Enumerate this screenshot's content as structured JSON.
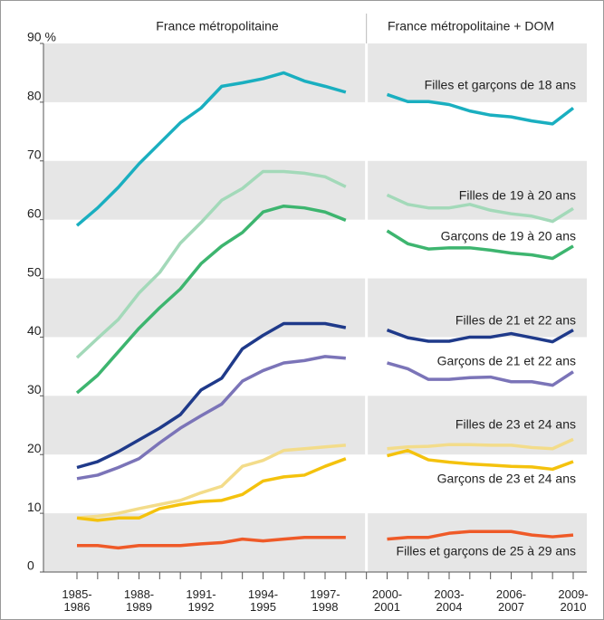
{
  "chart_data": {
    "type": "line",
    "panel_titles": [
      "France métropolitaine",
      "France métropolitaine + DOM"
    ],
    "categories": [
      "1985-1986",
      null,
      null,
      "1988-1989",
      null,
      null,
      "1991-1992",
      null,
      null,
      "1994-1995",
      null,
      null,
      "1997-1998",
      null,
      null,
      "2000-2001",
      null,
      null,
      "2003-2004",
      null,
      null,
      "2006-2007",
      null,
      null,
      "2009-2010"
    ],
    "ylim": [
      0,
      90
    ],
    "yticks": [
      0,
      10,
      20,
      30,
      40,
      50,
      60,
      70,
      80,
      {
        "value": 90,
        "label": "90 %"
      }
    ],
    "bands": true,
    "series": [
      {
        "name": "Filles et garçons de 18 ans",
        "color": "#1aafc0",
        "values": [
          59,
          62,
          65.5,
          69.5,
          73,
          76.5,
          79,
          82.7,
          83.3,
          84,
          85,
          83.6,
          82.7,
          81.7,
          null,
          81.3,
          80.1,
          80.1,
          79.6,
          78.5,
          77.8,
          77.5,
          76.8,
          76.3,
          79
        ]
      },
      {
        "name": "Filles de 19 à 20 ans",
        "color": "#a3d9b9",
        "values": [
          36.5,
          39.8,
          43,
          47.5,
          51,
          56,
          59.5,
          63.3,
          65.3,
          68.2,
          68.2,
          67.9,
          67.3,
          65.6,
          null,
          64.2,
          62.6,
          62,
          62,
          62.6,
          61.6,
          61,
          60.6,
          59.7,
          61.9
        ]
      },
      {
        "name": "Garçons de 19 à 20 ans",
        "color": "#3db56f",
        "values": [
          30.5,
          33.5,
          37.5,
          41.5,
          45,
          48.2,
          52.5,
          55.5,
          57.8,
          61.3,
          62.3,
          62,
          61.3,
          59.9,
          null,
          58.1,
          55.9,
          55,
          55.2,
          55.2,
          54.8,
          54.3,
          54,
          53.4,
          55.5
        ]
      },
      {
        "name": "Filles de 21 et 22 ans",
        "color": "#1f3a8a",
        "values": [
          17.8,
          18.8,
          20.5,
          22.5,
          24.5,
          26.8,
          31,
          33,
          38,
          40.3,
          42.3,
          42.3,
          42.3,
          41.6,
          null,
          41.2,
          39.9,
          39.3,
          39.3,
          40,
          40,
          40.6,
          39.9,
          39.2,
          41.2
        ]
      },
      {
        "name": "Garçons de 21 et 22 ans",
        "color": "#7b74b8",
        "values": [
          15.9,
          16.5,
          17.8,
          19.3,
          22,
          24.5,
          26.6,
          28.6,
          32.5,
          34.3,
          35.6,
          36,
          36.7,
          36.4,
          null,
          35.6,
          34.6,
          32.8,
          32.8,
          33.1,
          33.2,
          32.4,
          32.4,
          31.8,
          34.1
        ]
      },
      {
        "name": "Filles de 23 et 24 ans",
        "color": "#f3dc8a",
        "values": [
          9.2,
          9.5,
          10,
          10.8,
          11.5,
          12.2,
          13.5,
          14.6,
          18,
          19,
          20.7,
          21,
          21.3,
          21.6,
          null,
          21,
          21.3,
          21.4,
          21.7,
          21.7,
          21.6,
          21.6,
          21.2,
          21,
          22.6
        ]
      },
      {
        "name": "Garçons de 23 et 24 ans",
        "color": "#f4c20d",
        "values": [
          9.2,
          8.8,
          9.2,
          9.2,
          10.8,
          11.5,
          12,
          12.2,
          13.2,
          15.5,
          16.2,
          16.5,
          18,
          19.3,
          null,
          19.8,
          20.7,
          19.1,
          18.7,
          18.4,
          18.2,
          18,
          17.9,
          17.5,
          18.8
        ]
      },
      {
        "name": "Filles et garçons de 25 à 29 ans",
        "color": "#ef5a28",
        "values": [
          4.5,
          4.5,
          4.1,
          4.5,
          4.5,
          4.5,
          4.8,
          5,
          5.6,
          5.3,
          5.6,
          5.9,
          5.9,
          5.9,
          null,
          5.6,
          5.9,
          5.9,
          6.6,
          6.9,
          6.9,
          6.9,
          6.3,
          6,
          6.3
        ]
      }
    ]
  }
}
